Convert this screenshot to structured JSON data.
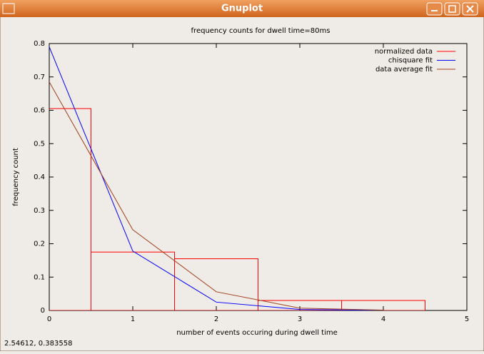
{
  "window": {
    "title": "Gnuplot",
    "status": "2.54612,  0.383558"
  },
  "chart_data": {
    "type": "line",
    "title": "frequency counts for dwell time=80ms",
    "x_label": "number of events occuring during dwell time",
    "y_label": "frequency count",
    "x": [
      0,
      1,
      2,
      3,
      4
    ],
    "series": [
      {
        "name": "normalized data",
        "type": "bar",
        "color": "#ff0000",
        "values": [
          0.605,
          0.175,
          0.155,
          0.03,
          0.03
        ]
      },
      {
        "name": "chisquare fit",
        "type": "line",
        "color": "#0000ff",
        "values": [
          0.79,
          0.178,
          0.025,
          0.003,
          0.0003
        ]
      },
      {
        "name": "data average fit",
        "type": "line",
        "color": "#a0401c",
        "values": [
          0.685,
          0.242,
          0.056,
          0.007,
          0.001
        ]
      }
    ],
    "xlim": [
      0,
      5
    ],
    "xticks": [
      0,
      1,
      2,
      3,
      4,
      5
    ],
    "ylim": [
      0,
      0.8
    ],
    "yticks": [
      0,
      0.1,
      0.2,
      0.3,
      0.4,
      0.5,
      0.6,
      0.7,
      0.8
    ],
    "legend": "upper right"
  }
}
